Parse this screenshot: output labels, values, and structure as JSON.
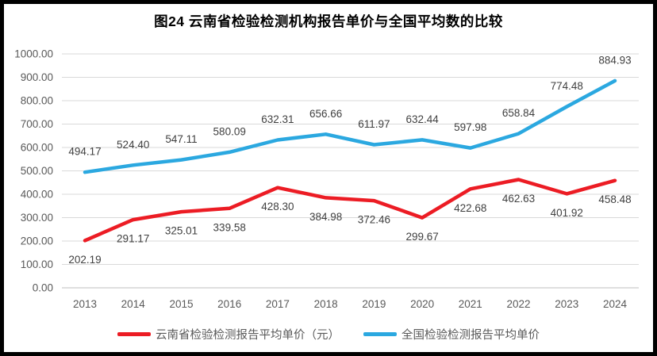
{
  "title": "图24 云南省检验检测机构报告单价与全国平均数的比较",
  "styles": {
    "yunnan_red": "#EC1C24",
    "national_blue": "#2BA8E0",
    "gridline": "#D9D9D9",
    "axis_line": "#BFBFBF",
    "tick_text": "#595959",
    "data_label_text": "#3F3F3F",
    "title_color": "#000000",
    "frame_border": "#000000",
    "background": "#FFFFFF"
  },
  "chart_data": {
    "type": "line",
    "title": "图24 云南省检验检测机构报告单价与全国平均数的比较",
    "categories": [
      "2013",
      "2014",
      "2015",
      "2016",
      "2017",
      "2018",
      "2019",
      "2020",
      "2021",
      "2022",
      "2023",
      "2024"
    ],
    "series": [
      {
        "name": "云南省检验检测报告平均单价（元）",
        "color": "#EC1C24",
        "label_position": "below",
        "values": [
          202.19,
          291.17,
          325.01,
          339.58,
          428.3,
          384.98,
          372.46,
          299.67,
          422.68,
          462.63,
          401.92,
          458.48
        ],
        "labels": [
          "202.19",
          "291.17",
          "325.01",
          "339.58",
          "428.30",
          "384.98",
          "372.46",
          "299.67",
          "422.68",
          "462.63",
          "401.92",
          "458.48"
        ]
      },
      {
        "name": "全国检验检测报告平均单价",
        "color": "#2BA8E0",
        "label_position": "above",
        "values": [
          494.17,
          524.4,
          547.11,
          580.09,
          632.31,
          656.66,
          611.97,
          632.44,
          597.98,
          658.84,
          774.48,
          884.93
        ],
        "labels": [
          "494.17",
          "524.40",
          "547.11",
          "580.09",
          "632.31",
          "656.66",
          "611.97",
          "632.44",
          "597.98",
          "658.84",
          "774.48",
          "884.93"
        ]
      }
    ],
    "xlabel": "",
    "ylabel": "",
    "ylim": [
      0,
      1000
    ],
    "ytick_step": 100,
    "ytick_labels": [
      "0.00",
      "100.00",
      "200.00",
      "300.00",
      "400.00",
      "500.00",
      "600.00",
      "700.00",
      "800.00",
      "900.00",
      "1000.00"
    ],
    "grid": true,
    "legend_position": "bottom"
  }
}
